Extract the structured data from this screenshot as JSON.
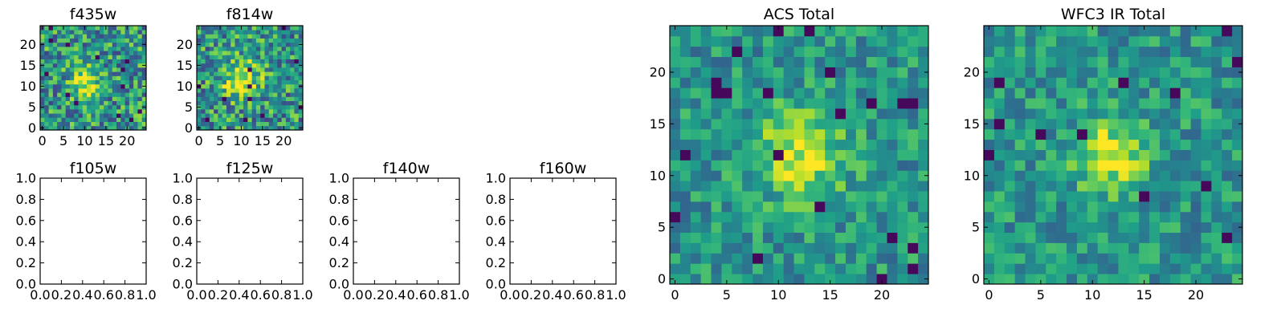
{
  "chart_data": [
    {
      "type": "heatmap",
      "title": "f435w",
      "colormap": "viridis",
      "grid": false,
      "shape": [
        25,
        25
      ],
      "xlim": [
        -0.5,
        24.5
      ],
      "ylim": [
        -0.5,
        24.5
      ],
      "xticks": [
        "0",
        "5",
        "10",
        "15",
        "20"
      ],
      "yticks": [
        "0",
        "5",
        "10",
        "15",
        "20"
      ],
      "peak": {
        "x": 10,
        "y": 11
      },
      "peak_width": 2.5,
      "noise": "high"
    },
    {
      "type": "heatmap",
      "title": "f814w",
      "colormap": "viridis",
      "grid": false,
      "shape": [
        25,
        25
      ],
      "xlim": [
        -0.5,
        24.5
      ],
      "ylim": [
        -0.5,
        24.5
      ],
      "xticks": [
        "0",
        "5",
        "10",
        "15",
        "20"
      ],
      "yticks": [
        "0",
        "5",
        "10",
        "15",
        "20"
      ],
      "peak": {
        "x": 10,
        "y": 12
      },
      "peak_width": 3.2,
      "noise": "high"
    },
    {
      "type": "empty",
      "title": "f105w",
      "xlim": [
        0,
        1
      ],
      "ylim": [
        0,
        1
      ],
      "xticks": [
        "0.0",
        "0.2",
        "0.4",
        "0.6",
        "0.8",
        "1.0"
      ],
      "yticks": [
        "0.0",
        "0.2",
        "0.4",
        "0.6",
        "0.8",
        "1.0"
      ]
    },
    {
      "type": "empty",
      "title": "f125w",
      "xlim": [
        0,
        1
      ],
      "ylim": [
        0,
        1
      ],
      "xticks": [
        "0.0",
        "0.2",
        "0.4",
        "0.6",
        "0.8",
        "1.0"
      ],
      "yticks": [
        "0.0",
        "0.2",
        "0.4",
        "0.6",
        "0.8",
        "1.0"
      ]
    },
    {
      "type": "empty",
      "title": "f140w",
      "xlim": [
        0,
        1
      ],
      "ylim": [
        0,
        1
      ],
      "xticks": [
        "0.0",
        "0.2",
        "0.4",
        "0.6",
        "0.8",
        "1.0"
      ],
      "yticks": [
        "0.0",
        "0.2",
        "0.4",
        "0.6",
        "0.8",
        "1.0"
      ]
    },
    {
      "type": "empty",
      "title": "f160w",
      "xlim": [
        0,
        1
      ],
      "ylim": [
        0,
        1
      ],
      "xticks": [
        "0.0",
        "0.2",
        "0.4",
        "0.6",
        "0.8",
        "1.0"
      ],
      "yticks": [
        "0.0",
        "0.2",
        "0.4",
        "0.6",
        "0.8",
        "1.0"
      ]
    },
    {
      "type": "heatmap",
      "title": "ACS Total",
      "colormap": "viridis",
      "grid": false,
      "shape": [
        25,
        25
      ],
      "xlim": [
        -0.5,
        24.5
      ],
      "ylim": [
        -0.5,
        24.5
      ],
      "xticks": [
        "0",
        "5",
        "10",
        "15",
        "20"
      ],
      "yticks": [
        "0",
        "5",
        "10",
        "15",
        "20"
      ],
      "peak": {
        "x": 12,
        "y": 12
      },
      "peak_width": 3.0,
      "noise": "medium"
    },
    {
      "type": "heatmap",
      "title": "WFC3 IR Total",
      "colormap": "viridis",
      "grid": false,
      "shape": [
        25,
        25
      ],
      "xlim": [
        -0.5,
        24.5
      ],
      "ylim": [
        -0.5,
        24.5
      ],
      "xticks": [
        "0",
        "5",
        "10",
        "15",
        "20"
      ],
      "yticks": [
        "0",
        "5",
        "10",
        "15",
        "20"
      ],
      "peak": {
        "x": 12,
        "y": 12
      },
      "peak_width": 2.6,
      "noise": "medium"
    }
  ]
}
